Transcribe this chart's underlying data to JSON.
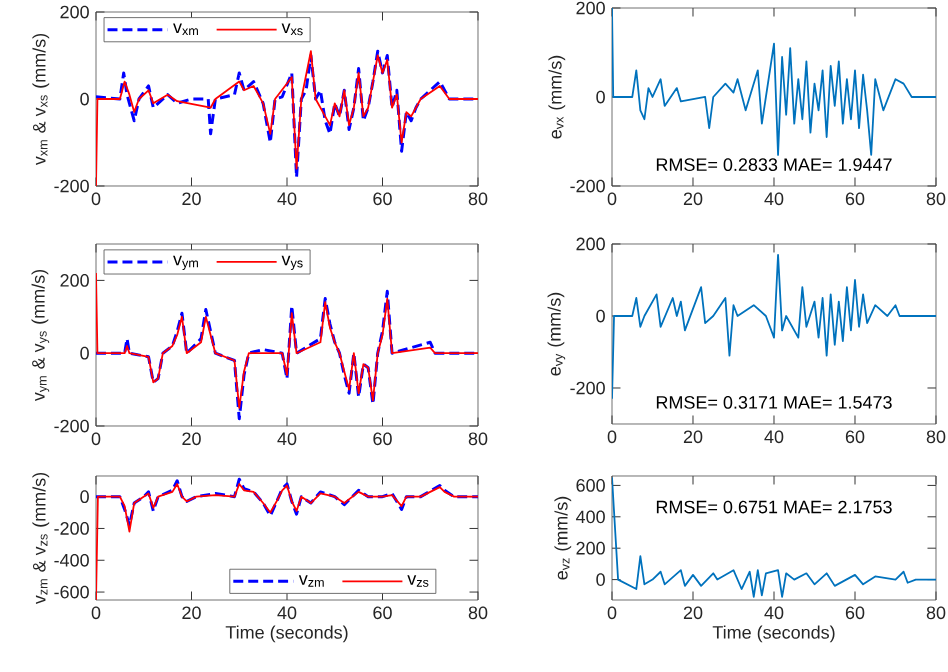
{
  "chart_data": [
    {
      "type": "line",
      "ylabel": "v$_{xm}$ & v$_{xs}$ (mm/s)",
      "xlim": [
        0,
        80
      ],
      "xticks": [
        0,
        20,
        40,
        60,
        80
      ],
      "ylim": [
        -200,
        200
      ],
      "yticks": [
        -200,
        0,
        200
      ],
      "legend": "top left",
      "marker": "none",
      "grid": false,
      "series": [
        {
          "name": "v$_{xm}$",
          "color": "#0000ff",
          "line_style": "dashed",
          "x": [
            0,
            5,
            5.8,
            6.5,
            8,
            9,
            11,
            12,
            15,
            17,
            20,
            23.5,
            24,
            25,
            29,
            30,
            31,
            33,
            35,
            36.5,
            37.5,
            39,
            41,
            42,
            43,
            44,
            45,
            46,
            47,
            48,
            49,
            50,
            51,
            52,
            53,
            54,
            55,
            56,
            57,
            58,
            59,
            60,
            61,
            62,
            63,
            64,
            65,
            66,
            67,
            68,
            72,
            74,
            80
          ],
          "values": [
            5,
            0,
            60,
            10,
            -50,
            0,
            30,
            -20,
            10,
            -10,
            0,
            0,
            -80,
            0,
            10,
            60,
            20,
            40,
            -10,
            -100,
            0,
            5,
            60,
            -180,
            0,
            20,
            100,
            0,
            20,
            -50,
            -80,
            -10,
            -40,
            20,
            -70,
            -20,
            70,
            -50,
            -20,
            40,
            110,
            60,
            100,
            -20,
            20,
            -120,
            -30,
            -50,
            -20,
            0,
            40,
            0,
            0
          ]
        },
        {
          "name": "v$_{xs}$",
          "color": "#ff0000",
          "line_style": "solid",
          "x": [
            0,
            0.3,
            5,
            6,
            7,
            8,
            9,
            11,
            12,
            15,
            17,
            24,
            25,
            30,
            31,
            33,
            35,
            36.5,
            37.5,
            41,
            42,
            43,
            45,
            46,
            48,
            49,
            50,
            51,
            52,
            53,
            54,
            55,
            56,
            57,
            58,
            59,
            60,
            61,
            62,
            63,
            64,
            65,
            66,
            67,
            68,
            72,
            74,
            80
          ],
          "values": [
            -200,
            0,
            0,
            40,
            10,
            -30,
            0,
            20,
            -10,
            10,
            -5,
            -20,
            0,
            40,
            20,
            30,
            -10,
            -80,
            0,
            50,
            -160,
            0,
            110,
            0,
            -40,
            -60,
            -10,
            -40,
            20,
            -60,
            -20,
            60,
            -40,
            -20,
            40,
            100,
            60,
            90,
            -20,
            10,
            -100,
            -30,
            -40,
            -20,
            0,
            30,
            0,
            0
          ]
        }
      ]
    },
    {
      "type": "line",
      "ylabel": "v$_{ym}$ & v$_{ys}$ (mm/s)",
      "xlim": [
        0,
        80
      ],
      "xticks": [
        0,
        20,
        40,
        60,
        80
      ],
      "ylim": [
        -200,
        300
      ],
      "yticks": [
        -200,
        0,
        200
      ],
      "legend": "top left",
      "marker": "none",
      "grid": false,
      "series": [
        {
          "name": "v$_{ym}$",
          "color": "#0000ff",
          "line_style": "dashed",
          "x": [
            0,
            6,
            6.5,
            7,
            11,
            12,
            13,
            14,
            16,
            17,
            18,
            19,
            22,
            23,
            24,
            25,
            29,
            30,
            31,
            32,
            35,
            39,
            40,
            41,
            42,
            47,
            48,
            49,
            50,
            51,
            52,
            53,
            54,
            55,
            56,
            57,
            58,
            59,
            60,
            61,
            62,
            70,
            71,
            80
          ],
          "values": [
            0,
            0,
            40,
            0,
            -10,
            -80,
            -70,
            0,
            20,
            60,
            110,
            0,
            40,
            120,
            60,
            0,
            -20,
            -180,
            -60,
            0,
            10,
            0,
            -70,
            130,
            0,
            40,
            150,
            80,
            30,
            0,
            -60,
            -110,
            0,
            -120,
            -30,
            -40,
            -140,
            0,
            60,
            170,
            0,
            30,
            0,
            0
          ]
        },
        {
          "name": "v$_{ys}$",
          "color": "#ff0000",
          "line_style": "solid",
          "x": [
            0,
            0.3,
            6,
            6.5,
            7,
            11,
            12,
            13,
            14,
            16,
            17,
            18,
            19,
            22,
            23,
            24,
            25,
            29,
            30,
            31,
            32,
            39,
            40,
            41,
            42,
            47,
            48,
            49,
            50,
            51,
            52,
            53,
            54,
            55,
            56,
            57,
            58,
            59,
            60,
            61,
            62,
            70,
            71,
            80
          ],
          "values": [
            220,
            0,
            0,
            20,
            0,
            -10,
            -80,
            -70,
            0,
            20,
            50,
            100,
            0,
            30,
            100,
            50,
            0,
            -20,
            -150,
            -50,
            0,
            0,
            -60,
            110,
            0,
            30,
            140,
            70,
            30,
            0,
            -50,
            -100,
            0,
            -110,
            -30,
            -40,
            -130,
            0,
            50,
            150,
            0,
            15,
            0,
            0
          ]
        }
      ]
    },
    {
      "type": "line",
      "ylabel": "v$_{zm}$ & v$_{zs}$ (mm/s)",
      "xlabel": "Time (seconds)",
      "xlim": [
        0,
        80
      ],
      "xticks": [
        0,
        20,
        40,
        60,
        80
      ],
      "ylim": [
        -650,
        130
      ],
      "yticks": [
        -600,
        -400,
        -200,
        0
      ],
      "legend": "bottom",
      "marker": "none",
      "grid": false,
      "series": [
        {
          "name": "v$_{zm}$",
          "color": "#0000ff",
          "line_style": "dashed",
          "x": [
            0,
            5,
            6,
            7,
            8,
            10,
            11,
            12,
            13,
            16,
            17,
            18,
            19,
            21,
            25,
            29,
            30,
            31,
            33,
            35,
            36.5,
            38,
            39,
            40,
            41,
            42,
            43,
            45,
            47,
            50,
            52,
            55,
            57,
            60,
            62,
            64,
            65,
            68,
            72,
            73,
            75,
            80
          ],
          "values": [
            0,
            0,
            -80,
            -180,
            -40,
            0,
            30,
            -90,
            0,
            40,
            100,
            0,
            -30,
            0,
            20,
            0,
            110,
            50,
            30,
            -40,
            -120,
            -20,
            50,
            80,
            -30,
            -110,
            0,
            -40,
            30,
            0,
            -50,
            40,
            0,
            0,
            20,
            -80,
            0,
            0,
            70,
            40,
            0,
            0
          ]
        },
        {
          "name": "v$_{zs}$",
          "color": "#ff0000",
          "line_style": "solid",
          "x": [
            0,
            0.4,
            5,
            6,
            7,
            8,
            10,
            11,
            12,
            13,
            16,
            17,
            18,
            19,
            21,
            25,
            29,
            30,
            31,
            33,
            35,
            36.5,
            38,
            39,
            40,
            41,
            42,
            43,
            45,
            47,
            50,
            52,
            55,
            57,
            60,
            62,
            64,
            65,
            68,
            72,
            73,
            75,
            80
          ],
          "values": [
            -650,
            0,
            0,
            -60,
            -220,
            -40,
            0,
            20,
            -70,
            0,
            30,
            80,
            0,
            -30,
            0,
            10,
            0,
            80,
            40,
            30,
            -40,
            -100,
            -20,
            40,
            70,
            -30,
            -90,
            0,
            -40,
            20,
            0,
            -40,
            30,
            0,
            0,
            10,
            -60,
            0,
            0,
            60,
            30,
            0,
            0
          ]
        }
      ]
    },
    {
      "type": "line",
      "ylabel": "e$_{vx}$ (mm/s)",
      "xlim": [
        0,
        80
      ],
      "xticks": [
        0,
        20,
        40,
        60,
        80
      ],
      "ylim": [
        -200,
        200
      ],
      "yticks": [
        -200,
        0,
        200
      ],
      "marker": "none",
      "grid": false,
      "annotations": [
        "RMSE= 0.2833   MAE= 1.9447"
      ],
      "series": [
        {
          "color": "#0072bd",
          "line_style": "solid",
          "x": [
            0,
            0.3,
            5,
            6,
            7,
            8,
            9,
            10,
            12,
            13,
            16,
            17,
            23,
            24,
            25,
            28,
            30,
            31,
            33,
            36,
            37,
            38,
            40,
            41,
            42,
            43,
            44,
            45,
            46,
            47,
            48,
            49,
            50,
            51,
            52,
            53,
            54,
            55,
            56,
            57,
            58,
            59,
            60,
            61,
            62,
            63,
            64,
            65,
            67,
            70,
            72,
            74,
            80
          ],
          "values": [
            200,
            0,
            0,
            60,
            -30,
            -50,
            20,
            0,
            40,
            -20,
            20,
            -10,
            0,
            -70,
            0,
            30,
            10,
            40,
            -30,
            60,
            -60,
            0,
            120,
            -130,
            90,
            -40,
            110,
            -60,
            40,
            -50,
            80,
            -80,
            30,
            -30,
            60,
            -90,
            70,
            -20,
            80,
            -60,
            40,
            -50,
            60,
            -70,
            50,
            -30,
            -130,
            40,
            -30,
            40,
            30,
            0,
            0
          ]
        }
      ]
    },
    {
      "type": "line",
      "ylabel": "e$_{vy}$ (mm/s)",
      "xlim": [
        0,
        80
      ],
      "xticks": [
        0,
        20,
        40,
        60,
        80
      ],
      "ylim": [
        -300,
        200
      ],
      "yticks": [
        -200,
        0,
        200
      ],
      "marker": "none",
      "grid": false,
      "annotations": [
        "RMSE= 0.3171   MAE= 1.5473"
      ],
      "series": [
        {
          "color": "#0072bd",
          "line_style": "solid",
          "x": [
            0,
            0.5,
            5,
            6,
            7,
            8,
            11,
            12,
            15,
            16,
            17,
            18,
            22,
            23,
            25,
            28,
            29,
            30,
            31,
            35,
            38,
            40,
            41,
            42,
            43,
            46,
            47,
            48,
            50,
            51,
            52,
            53,
            54,
            55,
            56,
            57,
            58,
            59,
            60,
            61,
            62,
            63,
            65,
            68,
            70,
            71,
            80
          ],
          "values": [
            -230,
            0,
            0,
            50,
            -30,
            0,
            60,
            -30,
            50,
            0,
            40,
            -40,
            80,
            -20,
            0,
            50,
            -110,
            30,
            0,
            30,
            0,
            -60,
            170,
            -40,
            0,
            -60,
            80,
            -30,
            40,
            -60,
            50,
            -110,
            60,
            -80,
            40,
            -70,
            80,
            -40,
            100,
            -30,
            60,
            -20,
            30,
            0,
            30,
            0,
            0
          ]
        }
      ]
    },
    {
      "type": "line",
      "ylabel": "e$_{vz}$ (mm/s)",
      "xlabel": "Time (seconds)",
      "xlim": [
        0,
        80
      ],
      "xticks": [
        0,
        20,
        40,
        60,
        80
      ],
      "ylim": [
        -130,
        660
      ],
      "yticks": [
        0,
        200,
        400,
        600
      ],
      "marker": "none",
      "grid": false,
      "annotations": [
        "RMSE= 0.6751   MAE= 2.1753"
      ],
      "series": [
        {
          "color": "#0072bd",
          "line_style": "solid",
          "x": [
            0,
            1.5,
            6,
            7,
            8,
            10,
            12,
            13,
            17,
            18,
            20,
            22,
            25,
            26,
            30,
            32,
            34,
            35,
            36,
            37,
            38,
            41,
            42,
            43,
            45,
            48,
            50,
            53,
            55,
            60,
            62,
            65,
            70,
            72,
            73,
            75,
            80
          ],
          "values": [
            650,
            0,
            -60,
            150,
            -30,
            0,
            50,
            -30,
            60,
            -40,
            30,
            -40,
            40,
            0,
            60,
            -60,
            50,
            -110,
            60,
            -100,
            40,
            60,
            -110,
            40,
            0,
            40,
            -30,
            40,
            -40,
            30,
            -30,
            20,
            0,
            50,
            -20,
            0,
            0
          ]
        }
      ]
    }
  ]
}
